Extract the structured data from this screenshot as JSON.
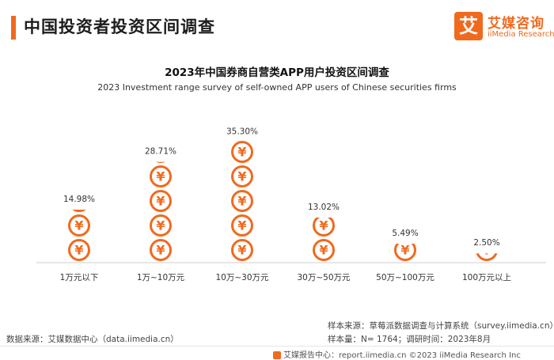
{
  "header": {
    "title": "中国投资者投资区间调查",
    "logo_glyph": "艾",
    "logo_name": "艾媒咨询",
    "logo_sub": "iiMedia Research"
  },
  "chart_data": {
    "type": "bar",
    "title": "2023年中国券商自营类APP用户投资区间调查",
    "subtitle": "2023 Investment range survey of self-owned APP users of Chinese securities firms",
    "categories": [
      "1万元以下",
      "1万~10万元",
      "10万~30万元",
      "30万~50万元",
      "50万~100万元",
      "100万元以上"
    ],
    "values": [
      14.98,
      28.71,
      35.3,
      13.02,
      5.49,
      2.5
    ],
    "value_labels": [
      "14.98%",
      "28.71%",
      "35.30%",
      "13.02%",
      "5.49%",
      "2.50%"
    ],
    "unit": "%",
    "coin_symbol": "¥",
    "ylim": [
      0,
      40
    ],
    "color": "#f06a1e"
  },
  "footer": {
    "sample_source": "样本来源：草莓派数据调查与计算系统（survey.iimedia.cn）",
    "sample_size": "样本量：N= 1764；调研时间：2023年8月",
    "data_source": "数据来源：艾媒数据中心（data.iimedia.cn）",
    "bottom_line": "艾媒报告中心：report.iimedia.cn  ©2023  iiMedia Research  Inc"
  }
}
